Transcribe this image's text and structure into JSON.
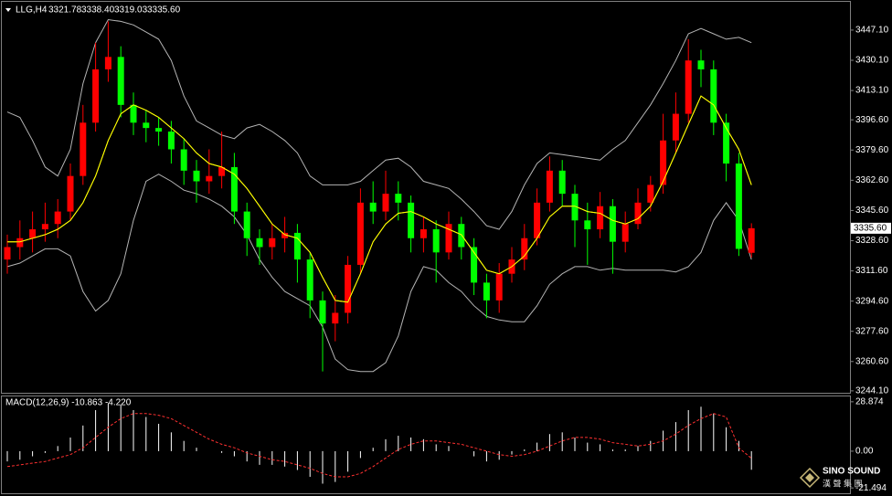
{
  "chart_data": {
    "type": "candlestick",
    "title": "LLG,H4",
    "last_bar_labels": [
      "3321.78",
      "3338.40",
      "3319.03",
      "3335.60"
    ],
    "current_price": {
      "value": 3335.6,
      "label": "3335.60"
    },
    "up_color": "#ff0000",
    "down_color": "#00ff00",
    "open": [
      3318,
      3325,
      3330,
      3335,
      3338,
      3345,
      3365,
      3395,
      3425,
      3432,
      3405,
      3395,
      3392,
      3390,
      3380,
      3368,
      3362,
      3365,
      3370,
      3345,
      3330,
      3325,
      3330,
      3333,
      3318,
      3295,
      3282,
      3288,
      3315,
      3350,
      3345,
      3355,
      3350,
      3330,
      3335,
      3322,
      3338,
      3325,
      3305,
      3295,
      3310,
      3318,
      3330,
      3350,
      3368,
      3355,
      3340,
      3335,
      3348,
      3328,
      3338,
      3350,
      3360,
      3385,
      3400,
      3430,
      3425,
      3395,
      3372,
      3321.78
    ],
    "high": [
      3332,
      3340,
      3345,
      3350,
      3352,
      3372,
      3405,
      3440,
      3452,
      3438,
      3412,
      3402,
      3398,
      3396,
      3386,
      3374,
      3380,
      3390,
      3378,
      3350,
      3335,
      3338,
      3342,
      3338,
      3322,
      3300,
      3298,
      3320,
      3358,
      3362,
      3368,
      3362,
      3354,
      3342,
      3340,
      3345,
      3342,
      3330,
      3310,
      3316,
      3325,
      3338,
      3358,
      3376,
      3374,
      3360,
      3350,
      3356,
      3352,
      3345,
      3358,
      3365,
      3400,
      3412,
      3442,
      3436,
      3430,
      3400,
      3378,
      3338.4
    ],
    "low": [
      3310,
      3318,
      3322,
      3328,
      3330,
      3340,
      3360,
      3390,
      3418,
      3398,
      3388,
      3384,
      3382,
      3372,
      3360,
      3350,
      3355,
      3358,
      3338,
      3320,
      3315,
      3318,
      3322,
      3305,
      3285,
      3255,
      3272,
      3282,
      3310,
      3338,
      3340,
      3340,
      3322,
      3322,
      3305,
      3318,
      3318,
      3298,
      3285,
      3288,
      3305,
      3312,
      3326,
      3345,
      3348,
      3325,
      3315,
      3330,
      3310,
      3322,
      3335,
      3345,
      3355,
      3378,
      3395,
      3415,
      3388,
      3362,
      3320,
      3319.03
    ],
    "close": [
      3325,
      3330,
      3335,
      3338,
      3345,
      3365,
      3395,
      3425,
      3432,
      3405,
      3395,
      3392,
      3390,
      3380,
      3368,
      3362,
      3365,
      3370,
      3345,
      3330,
      3325,
      3330,
      3333,
      3318,
      3295,
      3282,
      3288,
      3315,
      3350,
      3345,
      3355,
      3350,
      3330,
      3335,
      3322,
      3338,
      3325,
      3305,
      3295,
      3310,
      3318,
      3330,
      3350,
      3368,
      3355,
      3340,
      3335,
      3348,
      3328,
      3338,
      3350,
      3360,
      3385,
      3400,
      3430,
      3425,
      3395,
      3372,
      3324,
      3335.6
    ],
    "overlays": [
      {
        "color": "#ffff00",
        "values": [
          3328,
          3328,
          3330,
          3332,
          3335,
          3340,
          3350,
          3365,
          3385,
          3400,
          3405,
          3402,
          3398,
          3392,
          3386,
          3378,
          3372,
          3370,
          3366,
          3358,
          3348,
          3338,
          3332,
          3330,
          3322,
          3308,
          3295,
          3294,
          3310,
          3328,
          3338,
          3344,
          3345,
          3342,
          3338,
          3335,
          3332,
          3322,
          3312,
          3310,
          3314,
          3320,
          3330,
          3342,
          3348,
          3348,
          3345,
          3344,
          3340,
          3338,
          3341,
          3348,
          3362,
          3378,
          3394,
          3410,
          3405,
          3392,
          3380,
          3360
        ]
      },
      {
        "color": "#b4b4b4",
        "values": [
          3401,
          3398,
          3385,
          3370,
          3365,
          3380,
          3417,
          3440,
          3453,
          3452,
          3450,
          3446,
          3442,
          3430,
          3410,
          3396,
          3392,
          3388,
          3386,
          3392,
          3394,
          3390,
          3385,
          3378,
          3365,
          3360,
          3360,
          3360,
          3362,
          3368,
          3374,
          3375,
          3370,
          3362,
          3360,
          3358,
          3352,
          3345,
          3337,
          3335,
          3345,
          3360,
          3372,
          3378,
          3377,
          3376,
          3375,
          3374,
          3380,
          3385,
          3395,
          3405,
          3417,
          3430,
          3445,
          3448,
          3445,
          3442,
          3443,
          3440
        ]
      },
      {
        "color": "#b4b4b4",
        "values": [
          3314,
          3316,
          3320,
          3324,
          3324,
          3320,
          3300,
          3289,
          3295,
          3310,
          3340,
          3362,
          3366,
          3362,
          3357,
          3355,
          3352,
          3348,
          3342,
          3332,
          3318,
          3308,
          3300,
          3296,
          3292,
          3280,
          3262,
          3256,
          3255,
          3255,
          3260,
          3275,
          3300,
          3314,
          3312,
          3305,
          3300,
          3292,
          3286,
          3284,
          3283,
          3283,
          3292,
          3304,
          3310,
          3314,
          3314,
          3312,
          3313,
          3312,
          3312,
          3312,
          3312,
          3311,
          3314,
          3322,
          3340,
          3350,
          3340,
          3318
        ]
      }
    ],
    "ylim": [
      3242.5,
      3463
    ],
    "yticks": [
      {
        "value": 3447.1,
        "label": "3447.10"
      },
      {
        "value": 3430.1,
        "label": "3430.10"
      },
      {
        "value": 3413.1,
        "label": "3413.10"
      },
      {
        "value": 3396.6,
        "label": "3396.60"
      },
      {
        "value": 3379.6,
        "label": "3379.60"
      },
      {
        "value": 3362.6,
        "label": "3362.60"
      },
      {
        "value": 3345.6,
        "label": "3345.60"
      },
      {
        "value": 3328.6,
        "label": "3328.60"
      },
      {
        "value": 3311.6,
        "label": "3311.60"
      },
      {
        "value": 3294.6,
        "label": "3294.60"
      },
      {
        "value": 3277.6,
        "label": "3277.60"
      },
      {
        "value": 3260.6,
        "label": "3260.60"
      },
      {
        "value": 3244.1,
        "label": "3244.10"
      }
    ],
    "macd": {
      "label": "MACD(12,26,9) -10.863 -4.220",
      "histogram_color": "#ffffff",
      "signal_color": "#ff3030",
      "histogram": [
        -6,
        -5,
        -3,
        -1,
        3,
        8,
        15,
        24,
        28,
        27,
        24,
        20,
        16,
        11,
        6,
        2,
        0,
        -1,
        -3,
        -6,
        -8,
        -8,
        -9,
        -11,
        -15,
        -19,
        -18,
        -12,
        -4,
        2,
        7,
        9,
        8,
        7,
        4,
        3,
        0,
        -3,
        -6,
        -5,
        -2,
        1,
        5,
        10,
        11,
        8,
        5,
        4,
        1,
        1,
        3,
        6,
        12,
        17,
        24,
        26,
        22,
        14,
        6,
        -10.863
      ],
      "signal": [
        -9,
        -8,
        -7,
        -6,
        -4,
        -2,
        2,
        8,
        14,
        19,
        22,
        22,
        21,
        19,
        15,
        11,
        7,
        4,
        2,
        -1,
        -3,
        -5,
        -6,
        -8,
        -10,
        -13,
        -15,
        -15,
        -13,
        -9,
        -4,
        1,
        4,
        6,
        6,
        5,
        4,
        2,
        0,
        -2,
        -3,
        -2,
        0,
        3,
        6,
        8,
        8,
        7,
        5,
        4,
        3,
        4,
        6,
        10,
        15,
        19,
        22,
        20,
        2,
        -4.22
      ],
      "ylim": [
        -24.6,
        32
      ],
      "yticks": [
        28.874,
        {
          "value": 0,
          "label": "0.00"
        },
        -21.494
      ]
    },
    "watermark": {
      "brand": "SINO SOUND",
      "subtitle": "漢 聲 集 團"
    }
  }
}
